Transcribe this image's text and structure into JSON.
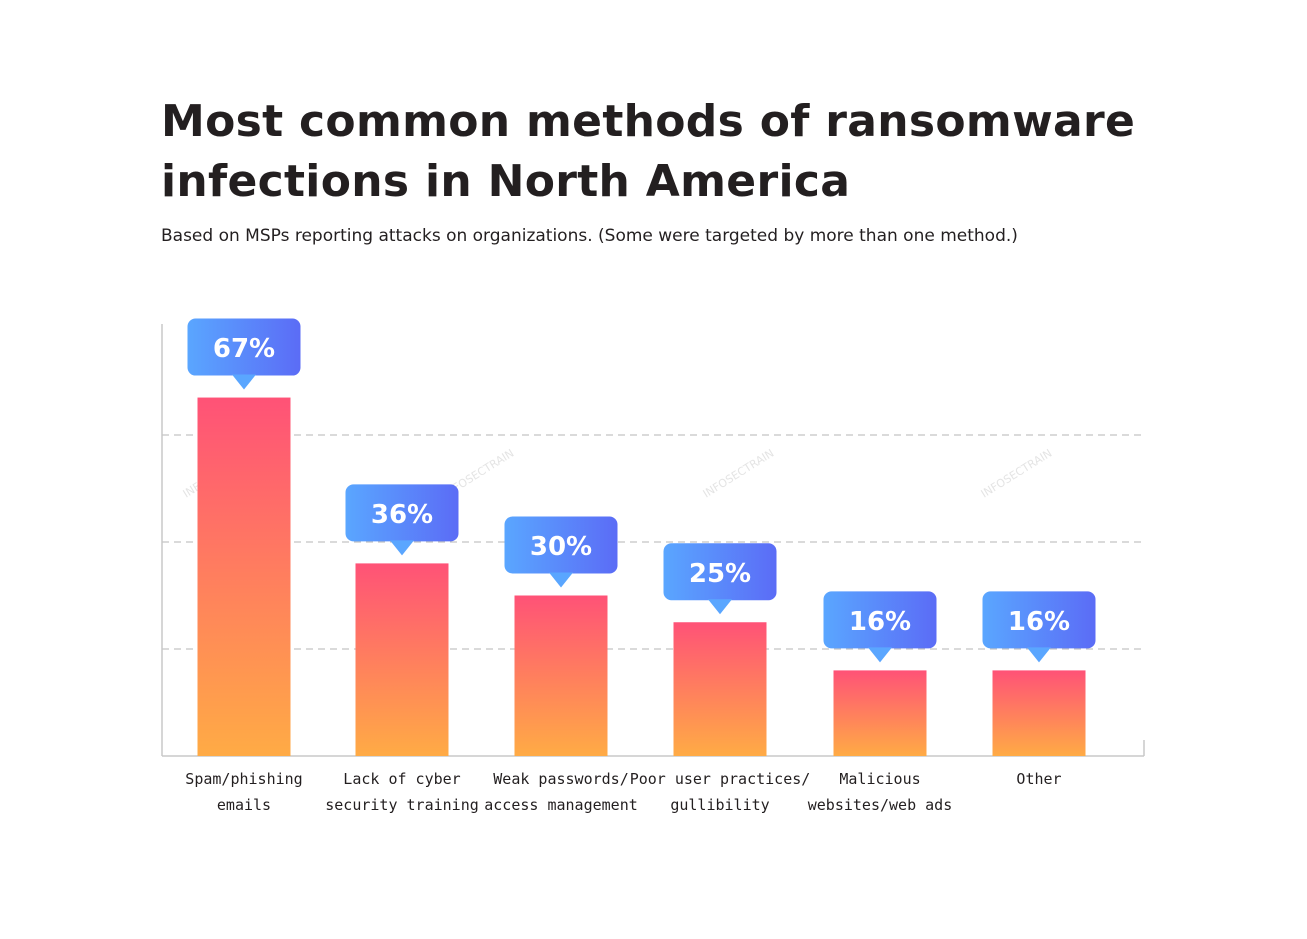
{
  "chart_data": {
    "type": "bar",
    "title_line1": "Most common methods  of ransomware",
    "title_line2": "infections in North America",
    "subtitle": "Based on MSPs reporting attacks on organizations. (Some were targeted by more than one method.)",
    "categories": [
      [
        "Spam/phishing",
        "emails"
      ],
      [
        "Lack of cyber",
        "security training"
      ],
      [
        "Weak passwords/",
        "access management"
      ],
      [
        "Poor user practices/",
        "gullibility"
      ],
      [
        "Malicious",
        "websites/web ads"
      ],
      [
        "Other"
      ]
    ],
    "values": [
      67,
      36,
      30,
      25,
      16,
      16
    ],
    "value_labels": [
      "67%",
      "36%",
      "30%",
      "25%",
      "16%",
      "16%"
    ],
    "ylim": [
      0,
      80
    ],
    "grid": "dashed",
    "watermark": "INFOSECTRAIN",
    "colors": {
      "bar_top": "#ff5277",
      "bar_bottom": "#ffab45",
      "label_left": "#5aa6ff",
      "label_right": "#5b6cf6",
      "grid": "#b5b5b5",
      "axis": "#c8c8c8"
    }
  }
}
